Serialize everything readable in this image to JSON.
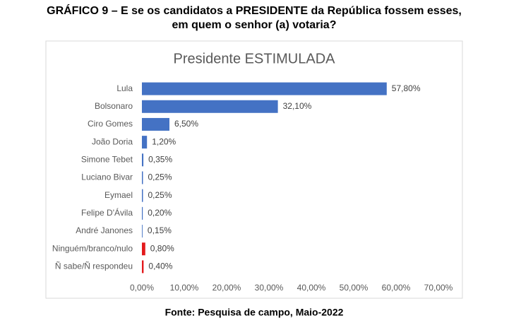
{
  "header": "GRÁFICO 9 – E se os candidatos a PRESIDENTE da República fossem esses, em quem o senhor (a) votaria?",
  "source": "Fonte: Pesquisa de campo, Maio-2022",
  "chart_data": {
    "type": "hbar",
    "title": "Presidente ESTIMULADA",
    "categories": [
      "Lula",
      "Bolsonaro",
      "Ciro Gomes",
      "João Doria",
      "Simone Tebet",
      "Luciano Bivar",
      "Eymael",
      "Felipe D'Ávila",
      "André Janones",
      "Ninguém/branco/nulo",
      "Ñ sabe/Ñ respondeu"
    ],
    "values": [
      57.8,
      32.1,
      6.5,
      1.2,
      0.35,
      0.25,
      0.25,
      0.2,
      0.15,
      0.8,
      0.4
    ],
    "value_labels": [
      "57,80%",
      "32,10%",
      "6,50%",
      "1,20%",
      "0,35%",
      "0,25%",
      "0,25%",
      "0,20%",
      "0,15%",
      "0,80%",
      "0,40%"
    ],
    "colors": [
      "#4472c4",
      "#4472c4",
      "#4472c4",
      "#4472c4",
      "#4472c4",
      "#4472c4",
      "#4472c4",
      "#4472c4",
      "#4472c4",
      "#e31a1c",
      "#e31a1c"
    ],
    "xlim": [
      0,
      70
    ],
    "xticks": [
      {
        "value": 0,
        "label": "0,00%"
      },
      {
        "value": 10,
        "label": "10,00%"
      },
      {
        "value": 20,
        "label": "20,00%"
      },
      {
        "value": 30,
        "label": "30,00%"
      },
      {
        "value": 40,
        "label": "40,00%"
      },
      {
        "value": 50,
        "label": "50,00%"
      },
      {
        "value": 60,
        "label": "60,00%"
      },
      {
        "value": 70,
        "label": "70,00%"
      }
    ]
  }
}
